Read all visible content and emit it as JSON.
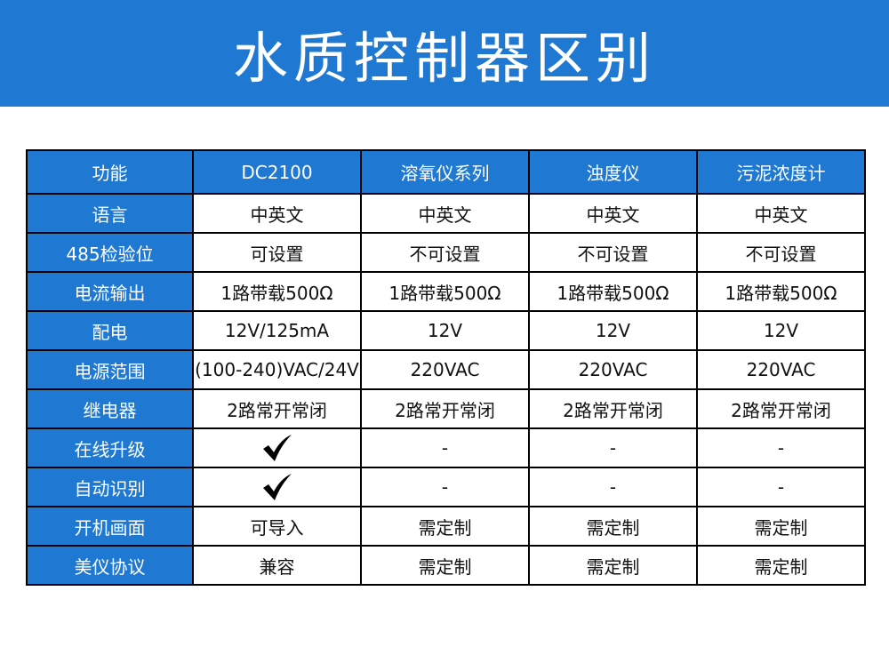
{
  "title": "水质控制器区别",
  "colors": {
    "accent": "#1f78d1",
    "border": "#000000"
  },
  "table": {
    "headers": [
      "功能",
      "DC2100",
      "溶氧仪系列",
      "浊度仪",
      "污泥浓度计"
    ],
    "rows": [
      [
        "语言",
        "中英文",
        "中英文",
        "中英文",
        "中英文"
      ],
      [
        "485检验位",
        "可设置",
        "不可设置",
        "不可设置",
        "不可设置"
      ],
      [
        "电流输出",
        "1路带载500Ω",
        "1路带载500Ω",
        "1路带载500Ω",
        "1路带载500Ω"
      ],
      [
        "配电",
        "12V/125mA",
        "12V",
        "12V",
        "12V"
      ],
      [
        "电源范围",
        "(100-240)VAC/24V",
        "220VAC",
        "220VAC",
        "220VAC"
      ],
      [
        "继电器",
        "2路常开常闭",
        "2路常开常闭",
        "2路常开常闭",
        "2路常开常闭"
      ],
      [
        "在线升级",
        "check-icon",
        "-",
        "-",
        "-"
      ],
      [
        "自动识别",
        "check-icon",
        "-",
        "-",
        "-"
      ],
      [
        "开机画面",
        "可导入",
        "需定制",
        "需定制",
        "需定制"
      ],
      [
        "美仪协议",
        "兼容",
        "需定制",
        "需定制",
        "需定制"
      ]
    ]
  }
}
